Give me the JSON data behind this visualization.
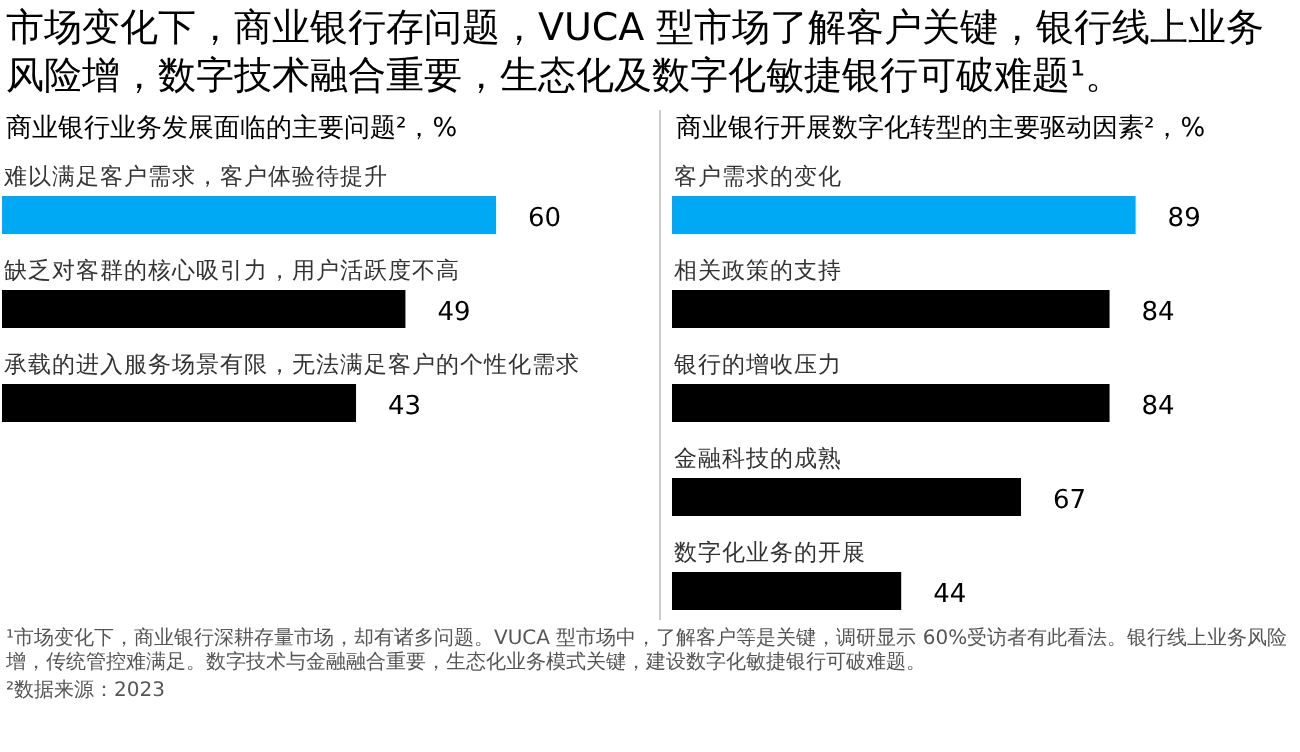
{
  "chart_data": [
    {
      "type": "bar",
      "orientation": "horizontal",
      "title": "市场变化下，商业银行存问题，VUCA 型市场了解客户关键，银行线上业务风险增，数字技术融合重要，生态化及数字化敏捷银行可破难题¹。",
      "subtitle": "商业银行业务发展面临的主要问题²，%",
      "categories": [
        "难以满足客户需求，客户体验待提升",
        "缺乏对客群的核心吸引力，用户活跃度不高",
        "承载的进入服务场景有限，无法满足客户的个性化需求"
      ],
      "values": [
        60,
        49,
        43
      ],
      "colors": [
        "#00a9f4",
        "#000000",
        "#000000"
      ],
      "data_labels": true,
      "annotations": [
        "¹市场变化下，商业银行深耕存量市场，却有诸多问题。VUCA 型市场中，了解客户等是关键，调研显示 60%受访者有此看法。银行线上业务风险增，传统管控难满足。数字技术与金融融合重要，生态化业务模式关键，建设数字化敏捷银行可破难题。",
        "²数据来源：2023"
      ]
    },
    {
      "type": "bar",
      "orientation": "horizontal",
      "subtitle": "商业银行开展数字化转型的主要驱动因素²，%",
      "categories": [
        "客户需求的变化",
        "相关政策的支持",
        "银行的增收压力",
        "金融科技的成熟",
        "数字化业务的开展"
      ],
      "values": [
        89,
        84,
        84,
        67,
        44
      ],
      "colors": [
        "#00a9f4",
        "#000000",
        "#000000",
        "#000000",
        "#000000"
      ],
      "data_labels": true
    }
  ]
}
